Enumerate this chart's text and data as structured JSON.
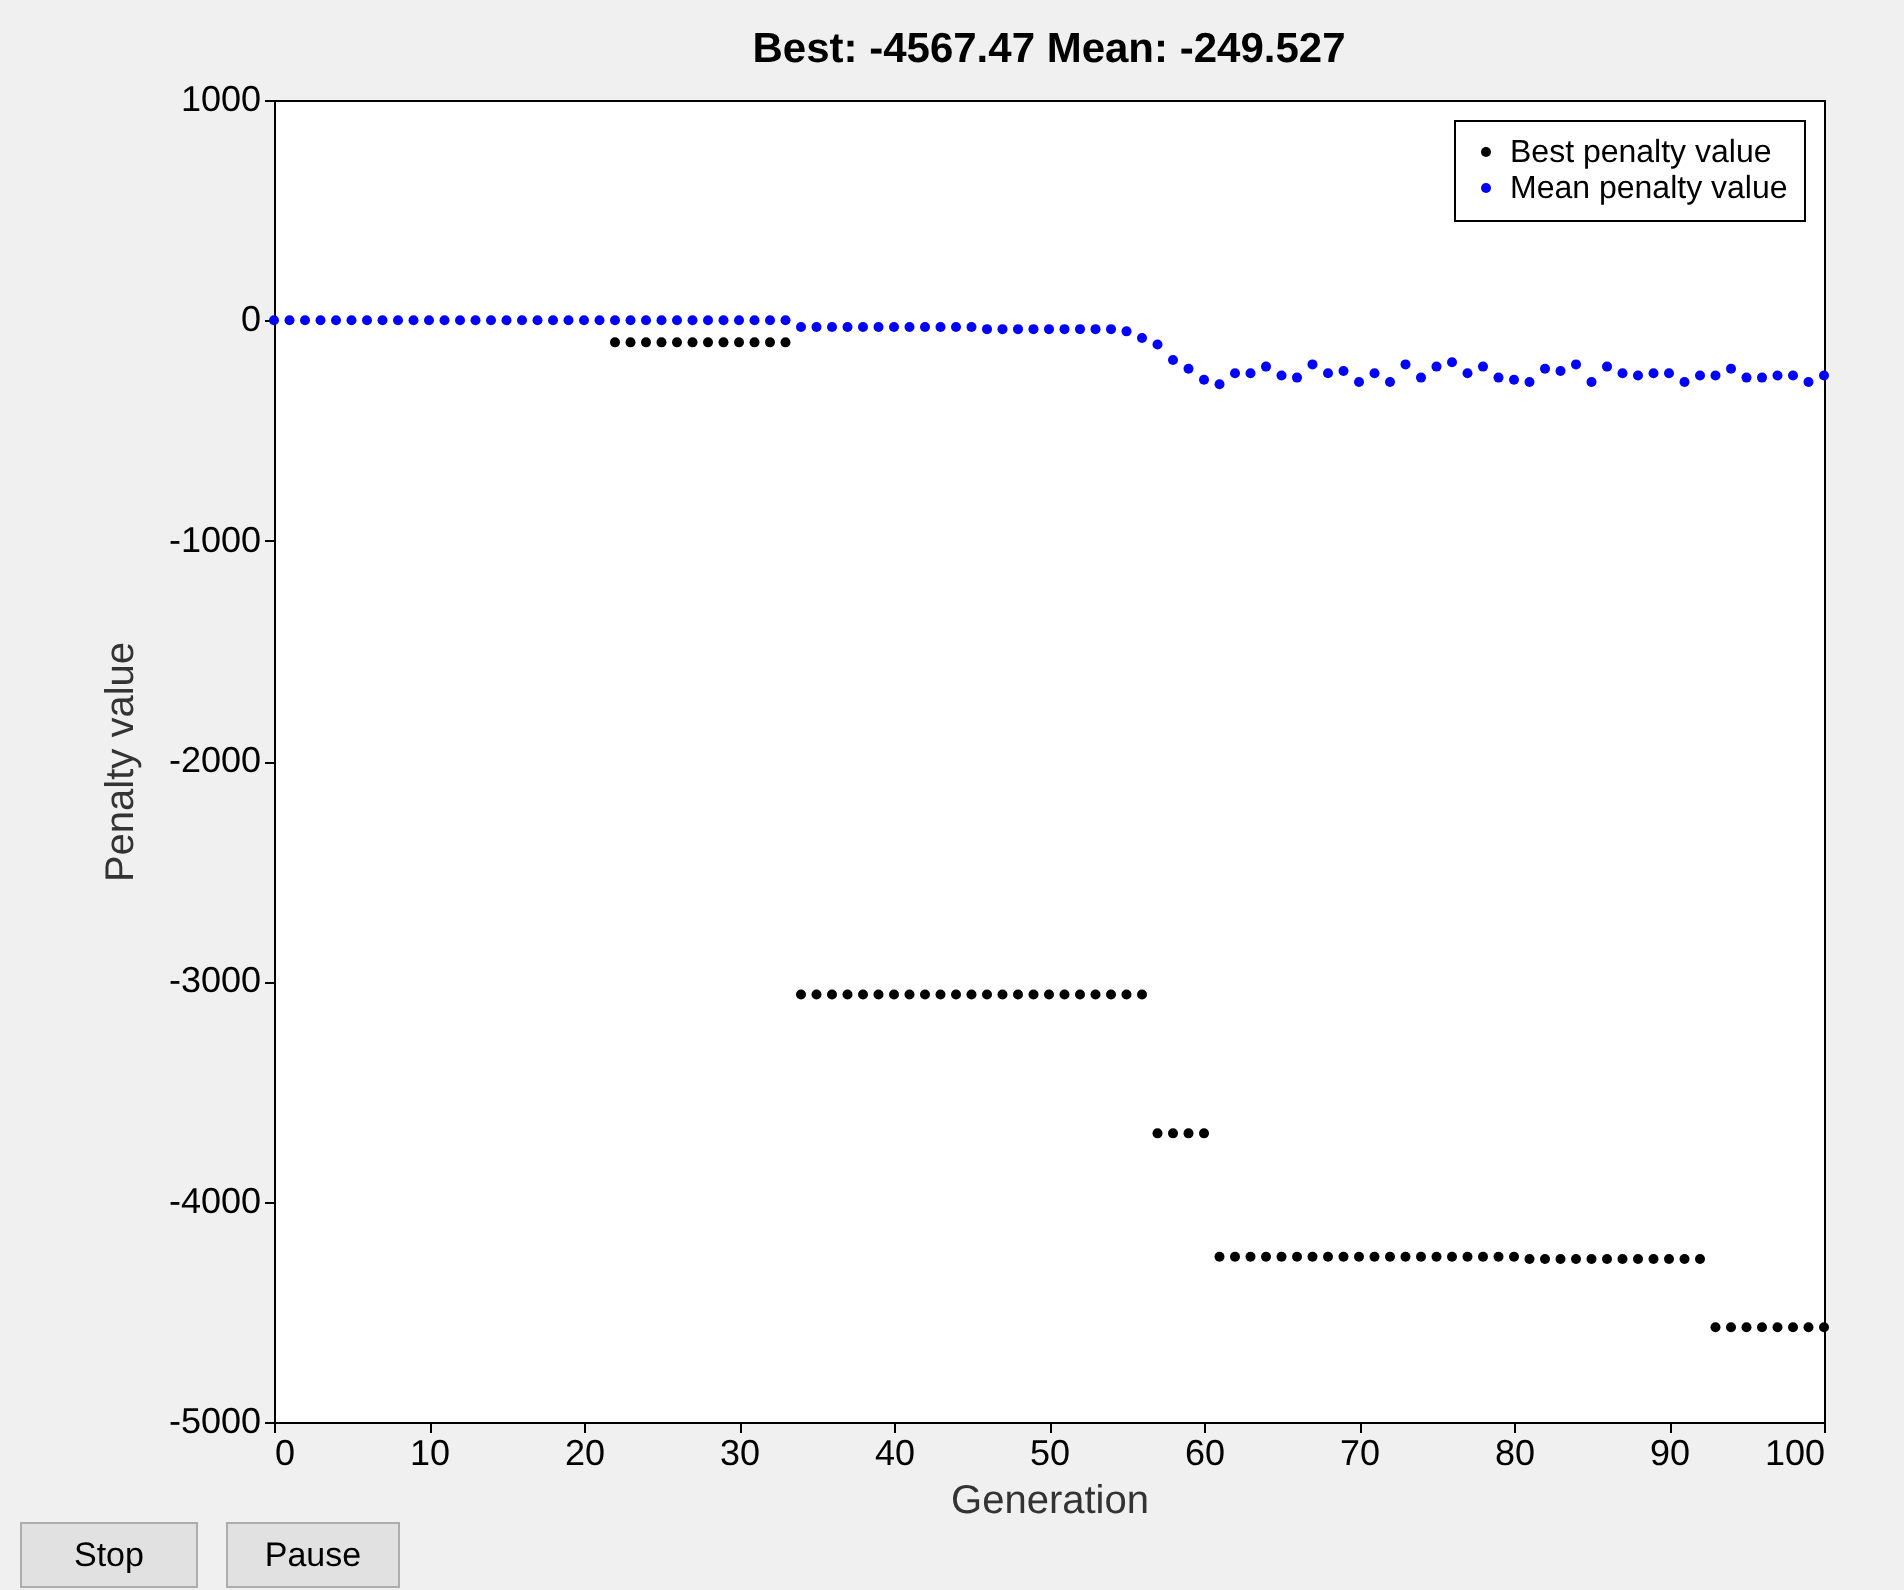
{
  "chart_data": {
    "type": "scatter",
    "title": "Best: -4567.47 Mean: -249.527",
    "xlabel": "Generation",
    "ylabel": "Penalty value",
    "x": [
      0,
      1,
      2,
      3,
      4,
      5,
      6,
      7,
      8,
      9,
      10,
      11,
      12,
      13,
      14,
      15,
      16,
      17,
      18,
      19,
      20,
      21,
      22,
      23,
      24,
      25,
      26,
      27,
      28,
      29,
      30,
      31,
      32,
      33,
      34,
      35,
      36,
      37,
      38,
      39,
      40,
      41,
      42,
      43,
      44,
      45,
      46,
      47,
      48,
      49,
      50,
      51,
      52,
      53,
      54,
      55,
      56,
      57,
      58,
      59,
      60,
      61,
      62,
      63,
      64,
      65,
      66,
      67,
      68,
      69,
      70,
      71,
      72,
      73,
      74,
      75,
      76,
      77,
      78,
      79,
      80,
      81,
      82,
      83,
      84,
      85,
      86,
      87,
      88,
      89,
      90,
      91,
      92,
      93,
      94,
      95,
      96,
      97,
      98,
      99,
      100
    ],
    "series": [
      {
        "name": "Best penalty value",
        "color": "#000000",
        "values": [
          null,
          null,
          null,
          null,
          null,
          null,
          null,
          null,
          null,
          null,
          null,
          null,
          null,
          null,
          null,
          null,
          null,
          null,
          null,
          null,
          null,
          null,
          -100,
          -100,
          -100,
          -100,
          -100,
          -100,
          -100,
          -100,
          -100,
          -100,
          -100,
          -100,
          -3060,
          -3060,
          -3060,
          -3060,
          -3060,
          -3060,
          -3060,
          -3060,
          -3060,
          -3060,
          -3060,
          -3060,
          -3060,
          -3060,
          -3060,
          -3060,
          -3060,
          -3060,
          -3060,
          -3060,
          -3060,
          -3060,
          -3060,
          -3690,
          -3690,
          -3690,
          -3690,
          -4250,
          -4250,
          -4250,
          -4250,
          -4250,
          -4250,
          -4250,
          -4250,
          -4250,
          -4250,
          -4250,
          -4250,
          -4250,
          -4250,
          -4250,
          -4250,
          -4250,
          -4250,
          -4250,
          -4250,
          -4260,
          -4260,
          -4260,
          -4260,
          -4260,
          -4260,
          -4260,
          -4260,
          -4260,
          -4260,
          -4260,
          -4260,
          -4570,
          -4570,
          -4570,
          -4570,
          -4570,
          -4570,
          -4570,
          -4570
        ]
      },
      {
        "name": "Mean penalty value",
        "color": "#0000ff",
        "values": [
          0,
          0,
          0,
          0,
          0,
          0,
          0,
          0,
          0,
          0,
          0,
          0,
          0,
          0,
          0,
          0,
          0,
          0,
          0,
          0,
          0,
          0,
          0,
          0,
          0,
          0,
          0,
          0,
          0,
          0,
          0,
          0,
          0,
          0,
          -30,
          -30,
          -30,
          -30,
          -30,
          -30,
          -30,
          -30,
          -30,
          -30,
          -30,
          -30,
          -40,
          -40,
          -40,
          -40,
          -40,
          -40,
          -40,
          -40,
          -40,
          -50,
          -80,
          -110,
          -180,
          -220,
          -270,
          -290,
          -240,
          -240,
          -210,
          -250,
          -260,
          -200,
          -240,
          -230,
          -280,
          -240,
          -280,
          -200,
          -260,
          -210,
          -190,
          -240,
          -210,
          -260,
          -270,
          -280,
          -220,
          -230,
          -200,
          -280,
          -210,
          -240,
          -250,
          -240,
          -240,
          -280,
          -250,
          -250,
          -220,
          -260,
          -260,
          -250,
          -250,
          -280,
          -250
        ]
      }
    ],
    "xlim": [
      0,
      100
    ],
    "xticks": [
      0,
      10,
      20,
      30,
      40,
      50,
      60,
      70,
      80,
      90,
      100
    ],
    "ylim": [
      -5000,
      1000
    ],
    "yticks": [
      -5000,
      -4000,
      -3000,
      -2000,
      -1000,
      0,
      1000
    ],
    "legend": "top right",
    "marker": "circle",
    "annotations": [
      "Stop",
      "Pause"
    ]
  }
}
